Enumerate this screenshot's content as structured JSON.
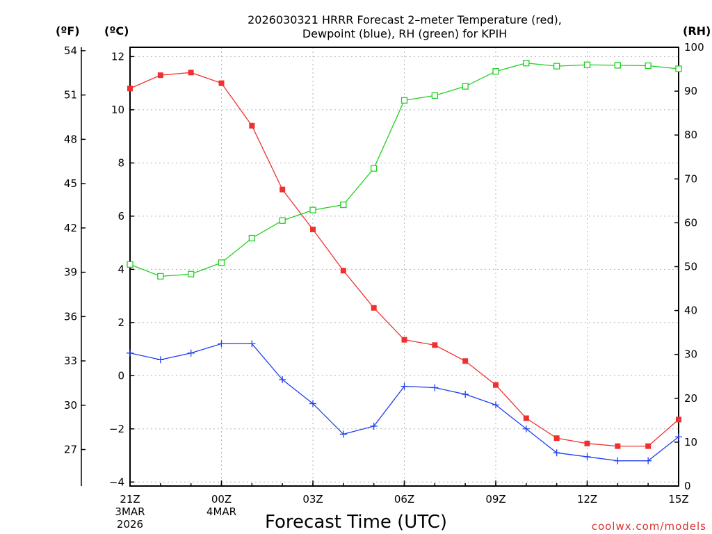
{
  "chart_data": {
    "type": "line",
    "title_lines": [
      "2026030321 HRRR Forecast 2–meter Temperature (red),",
      "Dewpoint (blue), RH (green) for KPIH"
    ],
    "xlabel": "Forecast Time (UTC)",
    "credit": "coolwx.com/models",
    "units": {
      "fahrenheit": "(ºF)",
      "celsius": "(ºC)",
      "rh": "(RH)"
    },
    "x_hours": [
      0,
      1,
      2,
      3,
      4,
      5,
      6,
      7,
      8,
      9,
      10,
      11,
      12,
      13,
      14,
      15,
      16,
      17,
      18
    ],
    "xlim": [
      0,
      18
    ],
    "x_ticks": [
      {
        "hour": 0,
        "label": "21Z",
        "sub": [
          "3MAR",
          "2026"
        ]
      },
      {
        "hour": 3,
        "label": "00Z",
        "sub": [
          "4MAR"
        ]
      },
      {
        "hour": 6,
        "label": "03Z",
        "sub": []
      },
      {
        "hour": 9,
        "label": "06Z",
        "sub": []
      },
      {
        "hour": 12,
        "label": "09Z",
        "sub": []
      },
      {
        "hour": 15,
        "label": "12Z",
        "sub": []
      },
      {
        "hour": 18,
        "label": "15Z",
        "sub": []
      }
    ],
    "y_celsius": {
      "lim": [
        -4.15,
        12.35
      ],
      "ticks": [
        -4,
        -2,
        0,
        2,
        4,
        6,
        8,
        10,
        12
      ],
      "tick_labels": [
        "−4",
        "−2",
        "0",
        "2",
        "4",
        "6",
        "8",
        "10",
        "12"
      ]
    },
    "y_fahrenheit": {
      "ticks": [
        27,
        30,
        33,
        36,
        39,
        42,
        45,
        48,
        51,
        54
      ],
      "tick_labels": [
        "27",
        "30",
        "33",
        "36",
        "39",
        "42",
        "45",
        "48",
        "51",
        "54"
      ]
    },
    "y_rh": {
      "lim": [
        0,
        100
      ],
      "ticks": [
        0,
        10,
        20,
        30,
        40,
        50,
        60,
        70,
        80,
        90,
        100
      ],
      "tick_labels": [
        "0",
        "10",
        "20",
        "30",
        "40",
        "50",
        "60",
        "70",
        "80",
        "90",
        "100"
      ]
    },
    "series": [
      {
        "name": "2-meter Temperature",
        "axis": "celsius",
        "color": "#f03030",
        "marker": "filled-square",
        "values": [
          10.8,
          11.3,
          11.4,
          11.0,
          9.4,
          7.0,
          5.5,
          3.95,
          2.55,
          1.35,
          1.15,
          0.55,
          -0.35,
          -1.6,
          -2.35,
          -2.55,
          -2.65,
          -2.65,
          -1.65
        ]
      },
      {
        "name": "Dewpoint",
        "axis": "celsius",
        "color": "#2040f0",
        "marker": "plus",
        "values": [
          0.85,
          0.6,
          0.85,
          1.2,
          1.2,
          -0.15,
          -1.05,
          -2.2,
          -1.9,
          -0.4,
          -0.45,
          -0.7,
          -1.1,
          -2.0,
          -2.9,
          -3.05,
          -3.2,
          -3.2,
          -2.3
        ]
      },
      {
        "name": "Relative Humidity",
        "axis": "rh",
        "color": "#20d020",
        "marker": "open-square",
        "values": [
          50.5,
          47.8,
          48.3,
          50.9,
          56.5,
          60.5,
          62.9,
          64.1,
          72.4,
          87.9,
          89.0,
          91.1,
          94.5,
          96.4,
          95.7,
          96.0,
          95.9,
          95.8,
          95.1
        ]
      }
    ],
    "grid": true
  }
}
